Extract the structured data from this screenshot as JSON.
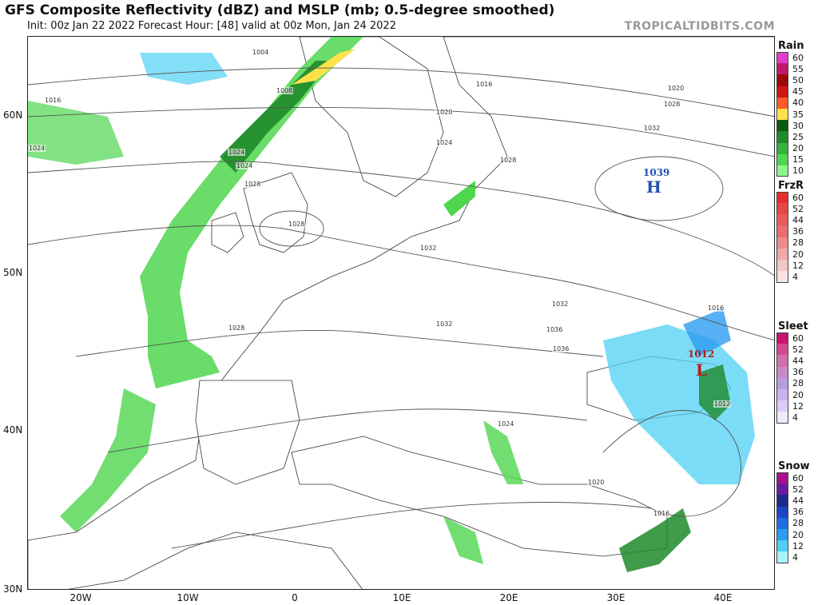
{
  "header": {
    "title": "GFS Composite Reflectivity (dBZ) and MSLP (mb; 0.5-degree smoothed)",
    "subtitle": "Init: 00z Jan 22 2022   Forecast Hour: [48]   valid at 00z Mon, Jan 24 2022",
    "brand": "TROPICALTIDBITS.COM"
  },
  "axes": {
    "lat_labels": [
      "60N",
      "50N",
      "40N",
      "30N"
    ],
    "lon_labels": [
      "20W",
      "10W",
      "0",
      "10E",
      "20E",
      "30E",
      "40E"
    ]
  },
  "pressure_centers": [
    {
      "type": "H",
      "value": "1039",
      "color": "#1f4fb0"
    },
    {
      "type": "L",
      "value": "1012",
      "color": "#b21e1e"
    }
  ],
  "isobar_labels": [
    "1004",
    "1008",
    "1016",
    "1016",
    "1020",
    "1020",
    "1024",
    "1024",
    "1024",
    "1024",
    "1028",
    "1028",
    "1028",
    "1028",
    "1032",
    "1032",
    "1032",
    "1036",
    "1036",
    "1032",
    "1028",
    "1020",
    "1016",
    "1012",
    "1024",
    "1020",
    "1016"
  ],
  "legends": [
    {
      "title": "Rain",
      "ticks": [
        "60",
        "55",
        "50",
        "45",
        "40",
        "35",
        "30",
        "25",
        "20",
        "15",
        "10"
      ],
      "colors": [
        "#e23dc9",
        "#c2186b",
        "#9e0a0a",
        "#d11414",
        "#ff5a2a",
        "#ffe14a",
        "#0b5a12",
        "#1f8a2a",
        "#35b23c",
        "#4fd64f",
        "#8cf78a"
      ]
    },
    {
      "title": "FrzR",
      "ticks": [
        "60",
        "52",
        "44",
        "36",
        "28",
        "20",
        "12",
        "4"
      ],
      "colors": [
        "#e82d2d",
        "#e84545",
        "#e85b5b",
        "#e87070",
        "#ec8c8c",
        "#f0a8a8",
        "#f4c6c6",
        "#f8e2e2"
      ]
    },
    {
      "title": "Sleet",
      "ticks": [
        "60",
        "52",
        "44",
        "36",
        "28",
        "20",
        "12",
        "4"
      ],
      "colors": [
        "#c8146e",
        "#d24a8e",
        "#d070aa",
        "#c68ac6",
        "#b69ee0",
        "#c8b4ee",
        "#dcccf6",
        "#f0e8fc"
      ]
    },
    {
      "title": "Snow",
      "ticks": [
        "60",
        "52",
        "44",
        "36",
        "28",
        "20",
        "12",
        "4"
      ],
      "colors": [
        "#a8128c",
        "#6a1aa0",
        "#1c2a8c",
        "#1d46c2",
        "#1f6de0",
        "#2c9cf0",
        "#4fd0f4",
        "#a8f2fa"
      ]
    }
  ]
}
